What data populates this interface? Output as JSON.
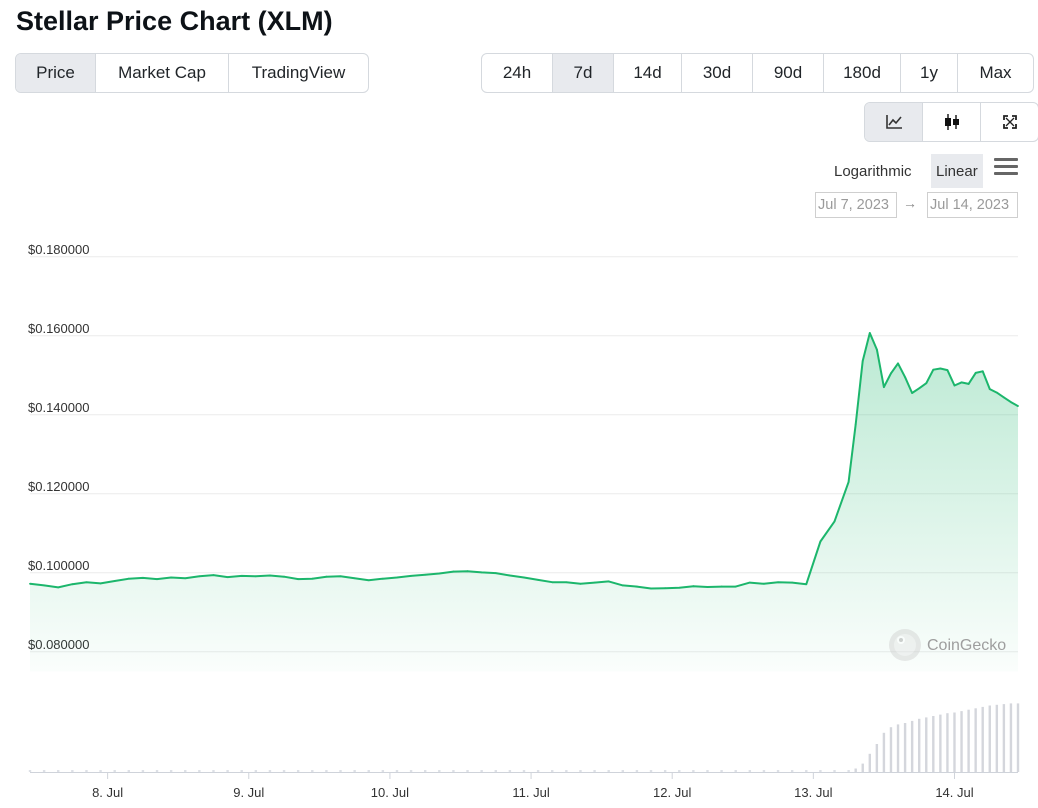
{
  "title": "Stellar Price Chart (XLM)",
  "view_tabs": [
    {
      "label": "Price",
      "active": true
    },
    {
      "label": "Market Cap",
      "active": false
    },
    {
      "label": "TradingView",
      "active": false
    }
  ],
  "range_tabs": [
    {
      "label": "24h",
      "active": false
    },
    {
      "label": "7d",
      "active": true
    },
    {
      "label": "14d",
      "active": false
    },
    {
      "label": "30d",
      "active": false
    },
    {
      "label": "90d",
      "active": false
    },
    {
      "label": "180d",
      "active": false
    },
    {
      "label": "1y",
      "active": false
    },
    {
      "label": "Max",
      "active": false
    }
  ],
  "chart_type_buttons": [
    {
      "icon": "line-chart-icon",
      "active": true
    },
    {
      "icon": "candlestick-icon",
      "active": false
    },
    {
      "icon": "fullscreen-icon",
      "active": false
    }
  ],
  "scale": {
    "logarithmic": "Logarithmic",
    "linear": "Linear",
    "selected": "Linear"
  },
  "date_range": {
    "from": "Jul 7, 2023",
    "arrow": "→",
    "to": "Jul 14, 2023"
  },
  "watermark": "CoinGecko",
  "colors": {
    "line": "#1cb66c",
    "active_button": "#e8eaee",
    "volume": "#d4d6dc"
  },
  "chart_data": {
    "type": "line",
    "title": "",
    "xlabel": "",
    "ylabel": "",
    "ylim": [
      0.075,
      0.185
    ],
    "y_ticks": [
      "$0.180000",
      "$0.160000",
      "$0.140000",
      "$0.120000",
      "$0.100000",
      "$0.080000"
    ],
    "y_tick_values": [
      0.18,
      0.16,
      0.14,
      0.12,
      0.1,
      0.08
    ],
    "x_ticks": [
      "8. Jul",
      "9. Jul",
      "10. Jul",
      "11. Jul",
      "12. Jul",
      "13. Jul",
      "14. Jul"
    ],
    "x_tick_values": [
      1,
      2,
      3,
      4,
      5,
      6,
      7
    ],
    "x_start": 0.45,
    "x_end": 7.45,
    "grid": true,
    "series": [
      {
        "x": [
          0.45,
          0.55,
          0.65,
          0.75,
          0.85,
          0.95,
          1.05,
          1.15,
          1.25,
          1.35,
          1.45,
          1.55,
          1.65,
          1.75,
          1.85,
          1.95,
          2.05,
          2.15,
          2.25,
          2.35,
          2.45,
          2.55,
          2.65,
          2.75,
          2.85,
          2.95,
          3.05,
          3.15,
          3.25,
          3.35,
          3.45,
          3.55,
          3.65,
          3.75,
          3.85,
          3.95,
          4.05,
          4.15,
          4.25,
          4.35,
          4.45,
          4.55,
          4.65,
          4.75,
          4.85,
          4.95,
          5.05,
          5.15,
          5.25,
          5.35,
          5.45,
          5.55,
          5.65,
          5.75,
          5.85,
          5.95,
          6.05,
          6.15,
          6.25,
          6.3,
          6.35,
          6.4,
          6.45,
          6.5,
          6.55,
          6.6,
          6.65,
          6.7,
          6.75,
          6.8,
          6.85,
          6.9,
          6.95,
          7.0,
          7.05,
          7.1,
          7.15,
          7.2,
          7.25,
          7.3,
          7.35,
          7.4,
          7.45
        ],
        "y": [
          0.0972,
          0.0968,
          0.0963,
          0.0971,
          0.0976,
          0.0973,
          0.0979,
          0.0985,
          0.0987,
          0.0984,
          0.0988,
          0.0986,
          0.0991,
          0.0994,
          0.0989,
          0.0992,
          0.0991,
          0.0993,
          0.099,
          0.0984,
          0.0985,
          0.099,
          0.0991,
          0.0986,
          0.0981,
          0.0985,
          0.0988,
          0.0992,
          0.0995,
          0.0998,
          0.1003,
          0.1004,
          0.1001,
          0.0999,
          0.0993,
          0.0988,
          0.0982,
          0.0976,
          0.0976,
          0.0972,
          0.0975,
          0.0978,
          0.0968,
          0.0965,
          0.096,
          0.0961,
          0.0962,
          0.0966,
          0.0964,
          0.0965,
          0.0965,
          0.0975,
          0.0972,
          0.0976,
          0.0975,
          0.0971,
          0.1079,
          0.113,
          0.123,
          0.1376,
          0.1536,
          0.1607,
          0.1565,
          0.147,
          0.1505,
          0.153,
          0.1495,
          0.1455,
          0.1467,
          0.148,
          0.1514,
          0.1517,
          0.1513,
          0.1474,
          0.1482,
          0.1478,
          0.1506,
          0.151,
          0.1465,
          0.1456,
          0.1444,
          0.1432,
          0.1422
        ]
      }
    ],
    "volume": [
      0,
      0,
      0,
      0,
      0,
      0,
      0,
      0,
      0,
      0,
      0,
      0,
      0,
      0,
      0,
      0,
      0,
      0,
      0,
      0,
      0,
      0,
      0,
      0,
      0,
      0,
      0,
      0,
      0,
      0,
      0,
      0,
      0,
      0,
      0,
      0,
      0,
      0,
      0,
      0,
      0,
      0,
      0,
      0,
      0,
      0,
      0,
      0,
      0,
      0,
      0,
      0,
      0,
      0,
      0,
      0,
      0,
      0,
      0,
      0.05,
      0.12,
      0.26,
      0.4,
      0.56,
      0.64,
      0.68,
      0.7,
      0.73,
      0.76,
      0.78,
      0.8,
      0.82,
      0.84,
      0.85,
      0.87,
      0.89,
      0.91,
      0.93,
      0.95,
      0.96,
      0.97,
      0.98,
      0.98
    ]
  }
}
